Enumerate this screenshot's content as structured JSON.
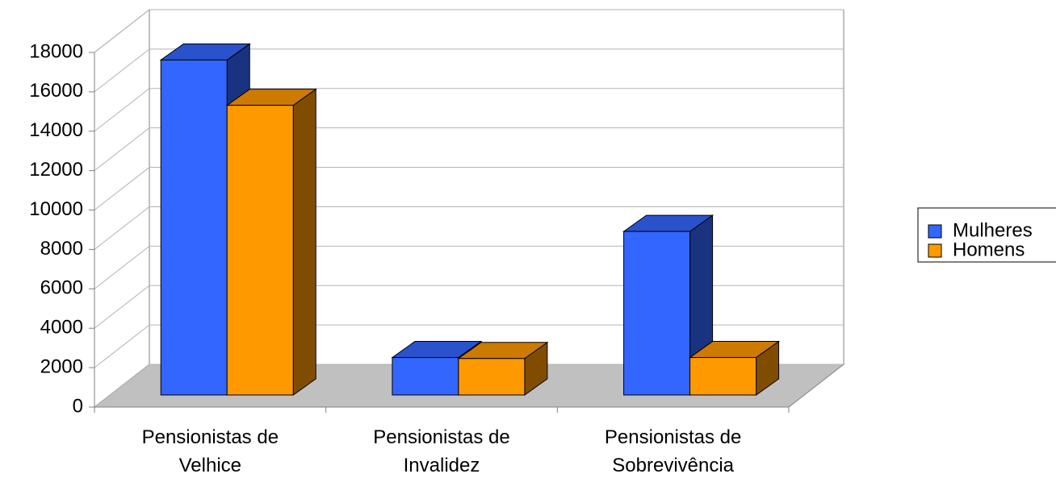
{
  "chart_data": {
    "type": "bar3d",
    "categories": [
      "Pensionistas de Velhice",
      "Pensionistas de Invalidez",
      "Pensionistas de Sobrevivência"
    ],
    "series": [
      {
        "name": "Mulheres",
        "color": "#3366ff",
        "values": [
          17000,
          1900,
          8300
        ]
      },
      {
        "name": "Homens",
        "color": "#ff9900",
        "values": [
          14700,
          1850,
          1900
        ]
      }
    ],
    "ylim": [
      0,
      18000
    ],
    "yticks": [
      0,
      2000,
      4000,
      6000,
      8000,
      10000,
      12000,
      14000,
      16000,
      18000
    ],
    "grid": true,
    "legend": "right"
  }
}
